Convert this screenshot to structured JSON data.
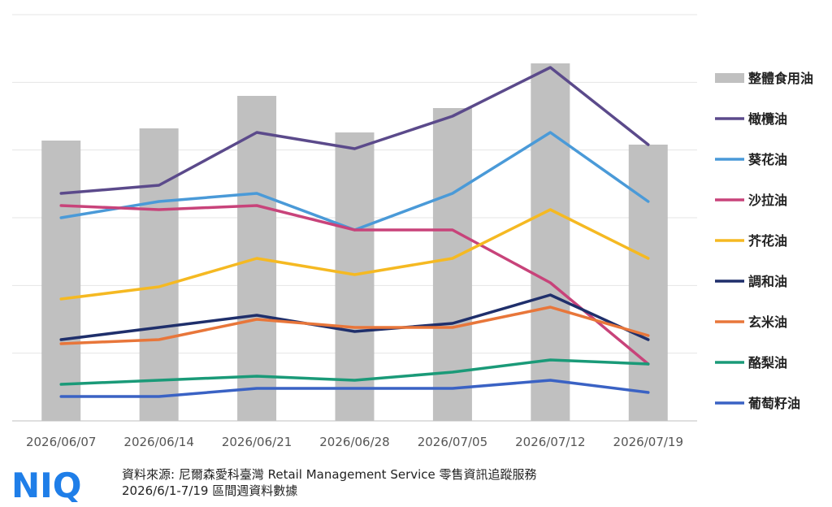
{
  "chart_data": {
    "type": "bar+line",
    "categories": [
      "2026/06/07",
      "2026/06/14",
      "2026/06/21",
      "2026/06/28",
      "2026/07/05",
      "2026/07/12",
      "2026/07/19"
    ],
    "ylim": [
      0,
      100
    ],
    "grid": true,
    "legend_position": "right",
    "bar_series": {
      "name": "整體食用油",
      "color": "#c0c0c0",
      "values": [
        69,
        72,
        80,
        71,
        77,
        88,
        68
      ]
    },
    "series": [
      {
        "name": "橄欖油",
        "color": "#5b4a8b",
        "values": [
          56,
          58,
          71,
          67,
          75,
          87,
          68
        ]
      },
      {
        "name": "葵花油",
        "color": "#4a9ad8",
        "values": [
          50,
          54,
          56,
          47,
          56,
          71,
          54
        ]
      },
      {
        "name": "沙拉油",
        "color": "#c8437a",
        "values": [
          53,
          52,
          53,
          47,
          47,
          34,
          14
        ]
      },
      {
        "name": "芥花油",
        "color": "#f5b922",
        "values": [
          30,
          33,
          40,
          36,
          40,
          52,
          40
        ]
      },
      {
        "name": "調和油",
        "color": "#1f2f6b",
        "values": [
          20,
          23,
          26,
          22,
          24,
          31,
          20
        ]
      },
      {
        "name": "玄米油",
        "color": "#e8763a",
        "values": [
          19,
          20,
          25,
          23,
          23,
          28,
          21
        ]
      },
      {
        "name": "酪梨油",
        "color": "#1a9a78",
        "values": [
          9,
          10,
          11,
          10,
          12,
          15,
          14
        ]
      },
      {
        "name": "葡萄籽油",
        "color": "#3a62c4",
        "values": [
          6,
          6,
          8,
          8,
          8,
          10,
          7
        ]
      }
    ]
  },
  "footer": {
    "logo_text": "NIQ",
    "logo_color": "#1f7ee8",
    "source_line1": "資料來源: 尼爾森愛科臺灣 Retail Management Service 零售資訊追蹤服務",
    "source_line2": "2026/6/1-7/19 區間週資料數據"
  }
}
